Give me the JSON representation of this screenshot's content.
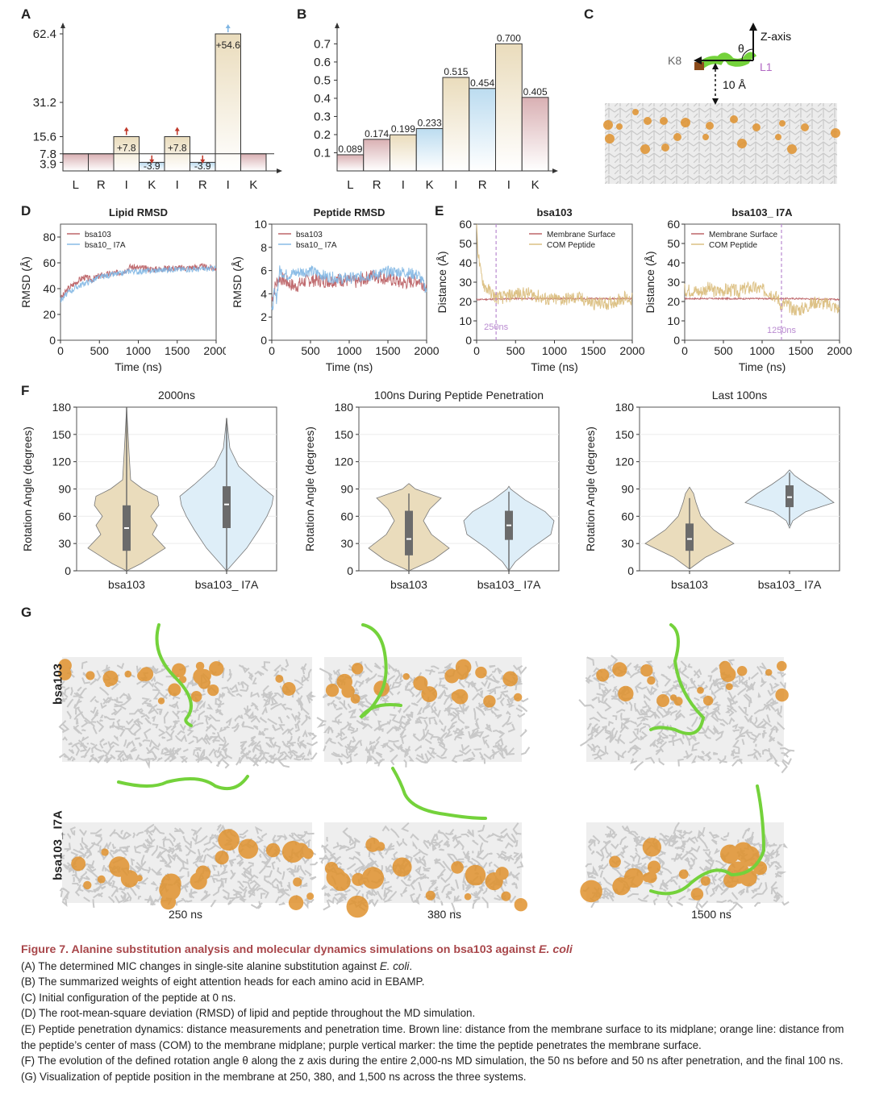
{
  "panels": {
    "A": {
      "letter": "A"
    },
    "B": {
      "letter": "B"
    },
    "C": {
      "letter": "C",
      "labels": {
        "k8": "K8",
        "l1": "L1",
        "zaxis": "Z-axis",
        "theta": "θ",
        "distance": "10 Å"
      }
    },
    "D": {
      "letter": "D"
    },
    "E": {
      "letter": "E"
    },
    "F": {
      "letter": "F"
    },
    "G": {
      "letter": "G",
      "rows": [
        "bsa103",
        "bsa103_ I7A"
      ],
      "times": [
        "250 ns",
        "380 ns",
        "1500 ns"
      ]
    }
  },
  "chart_data": [
    {
      "id": "A",
      "type": "bar",
      "title": "",
      "categories": [
        "L",
        "R",
        "I",
        "K",
        "I",
        "R",
        "I",
        "K"
      ],
      "values": [
        7.8,
        7.8,
        15.6,
        3.9,
        15.6,
        3.9,
        62.4,
        7.8
      ],
      "baseline": 7.8,
      "changes": [
        "",
        "",
        "+7.8",
        "-3.9",
        "+7.8",
        "-3.9",
        "+54.6",
        ""
      ],
      "arrows": [
        "",
        "",
        "up-red",
        "down-red",
        "up-red",
        "down-red",
        "up-blue",
        ""
      ],
      "yticks": [
        3.9,
        7.8,
        15.6,
        31.2,
        62.4
      ],
      "ylim": [
        0,
        62.4
      ],
      "colors": [
        "#d9b0b3",
        "#d9b0b3",
        "#eadcbc",
        "#bcdcf0",
        "#eadcbc",
        "#bcdcf0",
        "#eadcbc",
        "#d9b0b3"
      ]
    },
    {
      "id": "B",
      "type": "bar",
      "title": "",
      "categories": [
        "L",
        "R",
        "I",
        "K",
        "I",
        "R",
        "I",
        "K"
      ],
      "values": [
        0.089,
        0.174,
        0.199,
        0.233,
        0.515,
        0.454,
        0.7,
        0.405
      ],
      "labels": [
        "0.089",
        "0.174",
        "0.199",
        "0.233",
        "0.515",
        "0.454",
        "0.700",
        "0.405"
      ],
      "yticks": [
        "0.1",
        "0.2",
        "0.3",
        "0.4",
        "0.5",
        "0.6",
        "0.7"
      ],
      "ylim": [
        0,
        0.7
      ],
      "colors": [
        "#d9b0b3",
        "#d9b0b3",
        "#eadcbc",
        "#bcdcf0",
        "#eadcbc",
        "#bcdcf0",
        "#eadcbc",
        "#d9b0b3"
      ]
    },
    {
      "id": "D1",
      "type": "line",
      "title": "Lipid RMSD",
      "xlabel": "Time (ns)",
      "ylabel": "RMSD (Å)",
      "xlim": [
        0,
        2000
      ],
      "ylim": [
        0,
        90
      ],
      "xticks": [
        0,
        500,
        1000,
        1500,
        2000
      ],
      "yticks": [
        0,
        20,
        40,
        60,
        80
      ],
      "legend": "top-left",
      "series": [
        {
          "name": "bsa103",
          "color": "#b85a5e",
          "x": [
            0,
            100,
            200,
            300,
            400,
            500,
            600,
            700,
            800,
            900,
            1000,
            1200,
            1400,
            1600,
            1800,
            2000
          ],
          "y": [
            32,
            40,
            45,
            49,
            47,
            50,
            51,
            52,
            53,
            57,
            56,
            55,
            56,
            56,
            57,
            56
          ]
        },
        {
          "name": "bsa10_ I7A",
          "color": "#7fb6e3",
          "x": [
            0,
            100,
            200,
            300,
            400,
            500,
            600,
            700,
            800,
            900,
            1000,
            1200,
            1400,
            1600,
            1800,
            2000
          ],
          "y": [
            31,
            37,
            41,
            44,
            46,
            49,
            50,
            51,
            52,
            54,
            53,
            54,
            55,
            55,
            55,
            56
          ]
        }
      ]
    },
    {
      "id": "D2",
      "type": "line",
      "title": "Peptide RMSD",
      "xlabel": "Time (ns)",
      "ylabel": "RMSD (Å)",
      "xlim": [
        0,
        2000
      ],
      "ylim": [
        0,
        10
      ],
      "xticks": [
        0,
        500,
        1000,
        1500,
        2000
      ],
      "yticks": [
        0,
        2,
        4,
        6,
        8,
        10
      ],
      "legend": "top-left",
      "series": [
        {
          "name": "bsa103",
          "color": "#b85a5e",
          "x": [
            0,
            50,
            100,
            200,
            300,
            400,
            500,
            700,
            900,
            1100,
            1300,
            1500,
            1700,
            1900,
            2000
          ],
          "y": [
            3.5,
            4.8,
            5.4,
            5.0,
            4.6,
            5.0,
            5.2,
            5.1,
            5.2,
            5.0,
            5.6,
            5.3,
            4.9,
            5.2,
            4.6
          ]
        },
        {
          "name": "bsa10_ I7A",
          "color": "#7fb6e3",
          "x": [
            0,
            30,
            60,
            100,
            200,
            300,
            400,
            500,
            700,
            900,
            1100,
            1300,
            1500,
            1700,
            1900,
            2000
          ],
          "y": [
            2.2,
            4.0,
            3.6,
            6.0,
            5.6,
            5.8,
            5.9,
            6.0,
            5.5,
            5.3,
            5.4,
            5.6,
            5.9,
            5.9,
            5.6,
            4.3
          ]
        }
      ]
    },
    {
      "id": "E1",
      "type": "line",
      "title": "bsa103",
      "xlabel": "Time (ns)",
      "ylabel": "Distance (Å)",
      "xlim": [
        0,
        2000
      ],
      "ylim": [
        0,
        60
      ],
      "xticks": [
        0,
        500,
        1000,
        1500,
        2000
      ],
      "yticks": [
        0,
        10,
        20,
        30,
        40,
        50,
        60
      ],
      "legend": "top-right",
      "marker": {
        "x": 250,
        "label": "250ns",
        "color": "#b98ad0"
      },
      "series": [
        {
          "name": "Membrane Surface",
          "color": "#b85a5e",
          "x": [
            0,
            500,
            1000,
            1500,
            2000
          ],
          "y": [
            21,
            21.5,
            21.5,
            21.5,
            21.5
          ]
        },
        {
          "name": "COM Peptide",
          "color": "#d9bb7a",
          "x": [
            0,
            20,
            50,
            100,
            150,
            200,
            250,
            350,
            500,
            700,
            900,
            1100,
            1300,
            1500,
            1700,
            1900,
            2000
          ],
          "y": [
            58,
            45,
            35,
            28,
            26,
            24,
            22,
            22,
            24,
            24,
            21,
            21,
            22,
            19,
            19,
            22,
            21
          ]
        }
      ]
    },
    {
      "id": "E2",
      "type": "line",
      "title": "bsa103_ I7A",
      "xlabel": "Time (ns)",
      "ylabel": "Distance (Å)",
      "xlim": [
        0,
        2000
      ],
      "ylim": [
        0,
        60
      ],
      "xticks": [
        0,
        500,
        1000,
        1500,
        2000
      ],
      "yticks": [
        0,
        10,
        20,
        30,
        40,
        50,
        60
      ],
      "legend": "top-left",
      "marker": {
        "x": 1250,
        "label": "1250ns",
        "color": "#b98ad0"
      },
      "series": [
        {
          "name": "Membrane Surface",
          "color": "#b85a5e",
          "x": [
            0,
            500,
            1000,
            1500,
            2000
          ],
          "y": [
            21.5,
            21.5,
            21.5,
            21.5,
            21
          ]
        },
        {
          "name": "COM Peptide",
          "color": "#d9bb7a",
          "x": [
            0,
            100,
            200,
            300,
            400,
            500,
            600,
            700,
            800,
            900,
            1000,
            1100,
            1200,
            1250,
            1300,
            1400,
            1500,
            1600,
            1700,
            1800,
            1900,
            2000
          ],
          "y": [
            26,
            26,
            25,
            27,
            25,
            26,
            26,
            25,
            27,
            27,
            26,
            25,
            22,
            18,
            19,
            16,
            16,
            18,
            20,
            19,
            18,
            16
          ]
        }
      ]
    },
    {
      "id": "F1",
      "type": "violin",
      "title": "2000ns",
      "ylabel": "Rotation Angle (degrees)",
      "ylim": [
        0,
        180
      ],
      "yticks": [
        0,
        30,
        60,
        90,
        120,
        150,
        180
      ],
      "categories": [
        "bsa103",
        "bsa103_ I7A"
      ],
      "colors": [
        "#eadcbc",
        "#deeef8"
      ],
      "stats": [
        {
          "min": 0,
          "q1": 22,
          "median": 47,
          "q3": 72,
          "max": 180
        },
        {
          "min": 0,
          "q1": 47,
          "median": 73,
          "q3": 93,
          "max": 168
        }
      ]
    },
    {
      "id": "F2",
      "type": "violin",
      "title": "100ns During Peptide Penetration",
      "ylabel": "Rotation Angle (degrees)",
      "ylim": [
        0,
        180
      ],
      "yticks": [
        0,
        30,
        60,
        90,
        120,
        150,
        180
      ],
      "categories": [
        "bsa103",
        "bsa103_ I7A"
      ],
      "colors": [
        "#eadcbc",
        "#deeef8"
      ],
      "stats": [
        {
          "min": 0,
          "q1": 17,
          "median": 35,
          "q3": 66,
          "max": 85
        },
        {
          "min": 0,
          "q1": 34,
          "median": 50,
          "q3": 66,
          "max": 87
        }
      ]
    },
    {
      "id": "F3",
      "type": "violin",
      "title": "Last 100ns",
      "ylabel": "Rotation Angle (degrees)",
      "ylim": [
        0,
        180
      ],
      "yticks": [
        0,
        30,
        60,
        90,
        120,
        150,
        180
      ],
      "categories": [
        "bsa103",
        "bsa103_ I7A"
      ],
      "colors": [
        "#eadcbc",
        "#deeef8"
      ],
      "stats": [
        {
          "min": 2,
          "q1": 22,
          "median": 35,
          "q3": 52,
          "max": 80
        },
        {
          "min": 50,
          "q1": 70,
          "median": 81,
          "q3": 94,
          "max": 108
        }
      ]
    }
  ],
  "caption": {
    "title_plain": "Figure 7.  Alanine substitution analysis and molecular dynamics simulations on bsa103 against ",
    "title_italic": "E. coli",
    "lines": [
      {
        "plain": "(A) The determined MIC changes in single-site alanine substitution against ",
        "italic": "E. coli",
        "tail": "."
      },
      {
        "plain": "(B) The summarized weights of eight attention heads for each amino acid in EBAMP.",
        "italic": "",
        "tail": ""
      },
      {
        "plain": "(C) Initial configuration of the peptide at 0 ns.",
        "italic": "",
        "tail": ""
      },
      {
        "plain": "(D) The root-mean-square deviation (RMSD) of lipid and peptide throughout the MD simulation.",
        "italic": "",
        "tail": ""
      },
      {
        "plain": "(E) Peptide penetration dynamics: distance measurements and penetration time. Brown line: distance from the membrane surface to its midplane; orange line: distance from the peptide’s center of mass (COM) to the membrane midplane; purple vertical marker: the time the peptide penetrates the membrane surface.",
        "italic": "",
        "tail": ""
      },
      {
        "plain": "(F) The evolution of the defined rotation angle θ along the z axis during the entire 2,000-ns MD simulation, the 50 ns before and 50 ns after penetration, and the final 100 ns.",
        "italic": "",
        "tail": ""
      },
      {
        "plain": "(G) Visualization of peptide position in the membrane at 250, 380, and 1,500 ns across the three systems.",
        "italic": "",
        "tail": ""
      }
    ]
  }
}
